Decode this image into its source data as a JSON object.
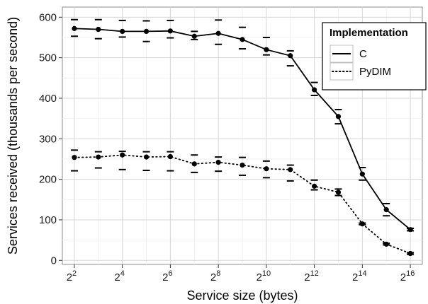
{
  "chart_data": {
    "type": "line",
    "xlabel": "Service size (bytes)",
    "ylabel": "Services received (thousands per second)",
    "x_scale": "log2",
    "x": [
      4,
      8,
      16,
      32,
      64,
      128,
      256,
      512,
      1024,
      2048,
      4096,
      8192,
      16384,
      32768,
      65536
    ],
    "x_ticks": [
      {
        "value": 4,
        "base": "2",
        "exp": "2"
      },
      {
        "value": 16,
        "base": "2",
        "exp": "4"
      },
      {
        "value": 64,
        "base": "2",
        "exp": "6"
      },
      {
        "value": 256,
        "base": "2",
        "exp": "8"
      },
      {
        "value": 1024,
        "base": "2",
        "exp": "10"
      },
      {
        "value": 4096,
        "base": "2",
        "exp": "12"
      },
      {
        "value": 16384,
        "base": "2",
        "exp": "14"
      },
      {
        "value": 65536,
        "base": "2",
        "exp": "16"
      }
    ],
    "ylim": [
      -10,
      625
    ],
    "y_ticks": [
      0,
      100,
      200,
      300,
      400,
      500,
      600
    ],
    "grid": true,
    "legend": {
      "title": "Implementation",
      "position": "top-right"
    },
    "series": [
      {
        "name": "C",
        "line_style": "solid",
        "values": [
          572,
          570,
          565,
          565,
          566,
          553,
          560,
          545,
          520,
          505,
          421,
          355,
          213,
          125,
          76
        ],
        "err_low": [
          553,
          547,
          551,
          540,
          549,
          545,
          533,
          522,
          507,
          480,
          407,
          337,
          198,
          110,
          73
        ],
        "err_high": [
          594,
          594,
          592,
          591,
          592,
          565,
          593,
          575,
          550,
          517,
          439,
          372,
          229,
          140,
          79
        ]
      },
      {
        "name": "PyDIM",
        "line_style": "dotted",
        "values": [
          254,
          255,
          260,
          255,
          256,
          238,
          242,
          235,
          226,
          224,
          183,
          168,
          90,
          40,
          17
        ],
        "err_low": [
          221,
          228,
          224,
          222,
          221,
          217,
          220,
          210,
          204,
          196,
          174,
          160,
          88,
          38,
          15
        ],
        "err_high": [
          272,
          268,
          269,
          268,
          268,
          260,
          255,
          254,
          245,
          235,
          198,
          176,
          92,
          42,
          19
        ]
      }
    ]
  }
}
